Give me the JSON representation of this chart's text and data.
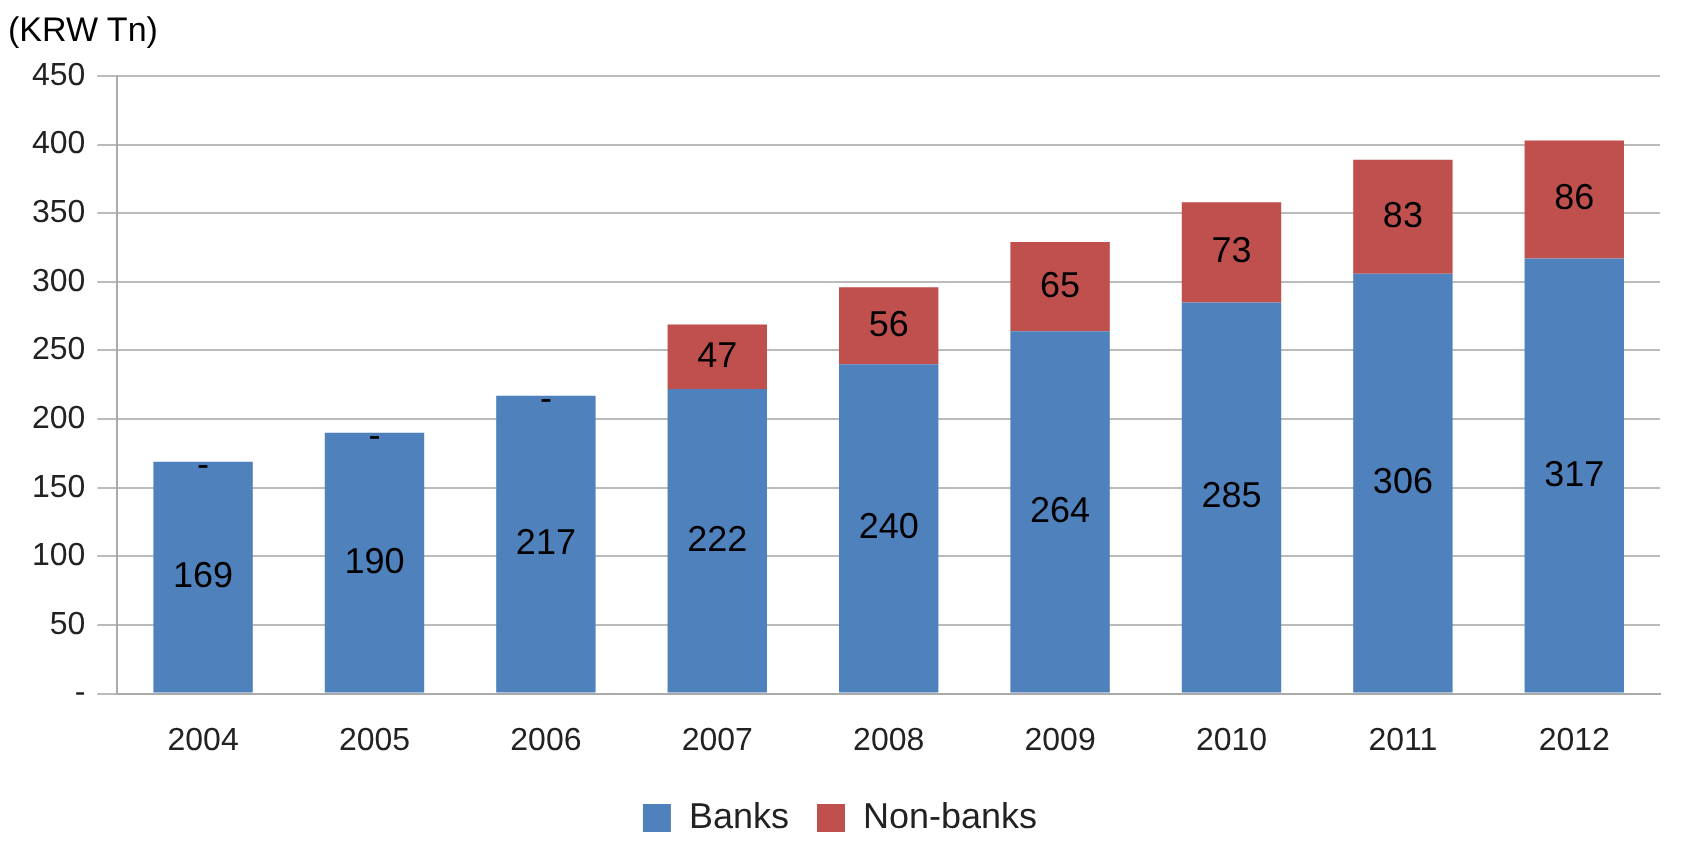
{
  "chart_data": {
    "type": "bar",
    "ylabel": "(KRW Tn)",
    "stacked": true,
    "categories": [
      "2004",
      "2005",
      "2006",
      "2007",
      "2008",
      "2009",
      "2010",
      "2011",
      "2012"
    ],
    "series": [
      {
        "name": "Banks",
        "color": "#4f81bd",
        "values": [
          169,
          190,
          217,
          222,
          240,
          264,
          285,
          306,
          317
        ],
        "value_labels": [
          "169",
          "190",
          "217",
          "222",
          "240",
          "264",
          "285",
          "306",
          "317"
        ]
      },
      {
        "name": "Non-banks",
        "color": "#c0504d",
        "values": [
          0,
          0,
          0,
          47,
          56,
          65,
          73,
          83,
          86
        ],
        "value_labels": [
          "-",
          "-",
          "-",
          "47",
          "56",
          "65",
          "73",
          "83",
          "86"
        ]
      }
    ],
    "ylim": [
      0,
      450
    ],
    "yticks": [
      {
        "value": 0,
        "label": "-"
      },
      50,
      100,
      150,
      200,
      250,
      300,
      350,
      400,
      450
    ],
    "grid": "y",
    "legend": "bottom"
  }
}
